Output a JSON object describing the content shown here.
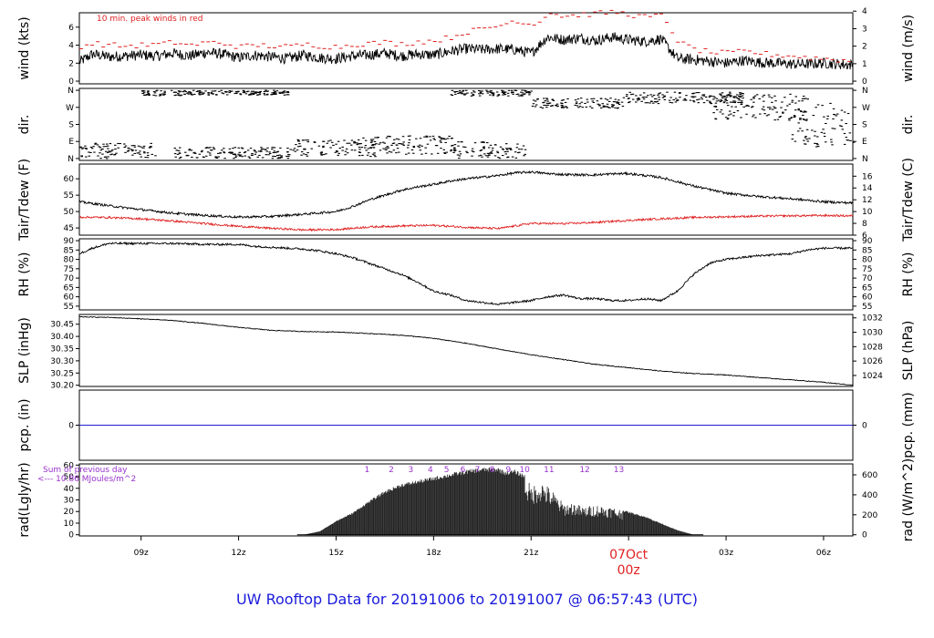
{
  "footer": {
    "title": "UW Rooftop Data for 20191006  to  20191007 @ 06:57:43  (UTC)"
  },
  "colors": {
    "peak_wind": "#e02020",
    "dewpoint": "#e02020",
    "precip": "#2020d0",
    "radiation_labels": "#9933cc",
    "date_marker": "#e02020",
    "footer": "#1a1adb"
  },
  "chart_data": [
    {
      "type": "line",
      "id": "wind",
      "ylabel_left": "wind (kts)",
      "ylabel_right": "wind (m/s)",
      "annotation": "10 min. peak winds in red",
      "yticks_left": [
        "0",
        "2",
        "4",
        "6"
      ],
      "ylim_left": [
        -0.3,
        7.6
      ],
      "yticks_right": [
        "0",
        "1",
        "2",
        "3",
        "4"
      ],
      "yticks_right_values_kts": [
        0,
        1.94,
        3.89,
        5.83,
        7.78
      ],
      "series": [
        {
          "name": "",
          "color": "#000000",
          "x": [
            7.1,
            7.5,
            8,
            8.5,
            9,
            9.5,
            10,
            10.5,
            11,
            11.5,
            12,
            12.5,
            13,
            13.5,
            14,
            14.5,
            15,
            15.5,
            16,
            16.5,
            17,
            17.5,
            18,
            18.5,
            19,
            19.5,
            20,
            20.5,
            21,
            21.5,
            22,
            22.5,
            23,
            23.5,
            24,
            24.5,
            25,
            25.5,
            26,
            26.5,
            27,
            27.5,
            28,
            28.5,
            29,
            29.5,
            30,
            30.9
          ],
          "values": [
            2.1,
            3.0,
            2.7,
            2.8,
            2.9,
            2.8,
            3.1,
            2.8,
            3.2,
            3.0,
            2.6,
            2.9,
            2.7,
            2.5,
            2.9,
            2.6,
            2.5,
            2.8,
            2.9,
            3.1,
            2.8,
            3.0,
            2.9,
            3.3,
            3.6,
            3.5,
            3.6,
            3.5,
            3.1,
            4.9,
            4.6,
            4.8,
            4.5,
            4.9,
            4.6,
            4.4,
            4.7,
            2.5,
            2.4,
            2.2,
            2.0,
            2.3,
            2.1,
            2.0,
            1.9,
            1.9,
            2.0,
            1.8
          ]
        },
        {
          "name": "",
          "color": "#e02020",
          "style": "dashes",
          "x": [
            7.1,
            7.5,
            8,
            8.5,
            9,
            9.5,
            10,
            10.5,
            11,
            11.5,
            12,
            12.5,
            13,
            13.5,
            14,
            14.5,
            15,
            15.5,
            16,
            16.5,
            17,
            17.5,
            18,
            18.5,
            19,
            19.5,
            20,
            20.5,
            21,
            21.5,
            22,
            22.5,
            23,
            23.5,
            24,
            24.5,
            25,
            25.5,
            26,
            26.5,
            27,
            27.5,
            28,
            28.5,
            29,
            29.5,
            30,
            30.9
          ],
          "values": [
            3.9,
            4.2,
            4.0,
            3.9,
            4.0,
            4.1,
            4.3,
            4.0,
            4.3,
            4.2,
            3.8,
            4.0,
            3.9,
            3.8,
            4.1,
            3.9,
            3.8,
            4.1,
            4.2,
            4.3,
            4.1,
            4.4,
            4.5,
            4.9,
            5.5,
            5.8,
            6.2,
            6.8,
            6.2,
            7.6,
            7.2,
            7.4,
            7.5,
            7.7,
            7.4,
            7.1,
            7.3,
            4.3,
            3.5,
            3.2,
            3.1,
            3.3,
            3.1,
            2.9,
            2.8,
            2.6,
            2.5,
            2.2
          ]
        }
      ]
    },
    {
      "type": "scatter",
      "id": "dir",
      "ylabel_left": "dir.",
      "ylabel_right": "dir.",
      "yticks": [
        "N",
        "E",
        "S",
        "W",
        "N"
      ],
      "ylim": [
        -10,
        370
      ],
      "note": "wind direction in degrees; 0/360 = N, 90 = E, 180 = S, 270 = W",
      "clusters": [
        {
          "x_range": [
            7.1,
            9.5
          ],
          "dir_range": [
            0,
            80
          ]
        },
        {
          "x_range": [
            9.0,
            10.5
          ],
          "dir_range": [
            330,
            360
          ]
        },
        {
          "x_range": [
            10.0,
            13.7
          ],
          "dir_range": [
            0,
            60
          ]
        },
        {
          "x_range": [
            10.5,
            13.5
          ],
          "dir_range": [
            335,
            360
          ]
        },
        {
          "x_range": [
            13.7,
            16.2
          ],
          "dir_range": [
            10,
            100
          ]
        },
        {
          "x_range": [
            15.8,
            18.6
          ],
          "dir_range": [
            20,
            120
          ]
        },
        {
          "x_range": [
            18.5,
            21.0
          ],
          "dir_range": [
            330,
            360
          ]
        },
        {
          "x_range": [
            18.6,
            20.8
          ],
          "dir_range": [
            0,
            90
          ]
        },
        {
          "x_range": [
            21.0,
            23.8
          ],
          "dir_range": [
            265,
            320
          ]
        },
        {
          "x_range": [
            23.8,
            27.5
          ],
          "dir_range": [
            290,
            350
          ]
        },
        {
          "x_range": [
            26.5,
            29.5
          ],
          "dir_range": [
            200,
            340
          ]
        },
        {
          "x_range": [
            29.0,
            30.9
          ],
          "dir_range": [
            60,
            310
          ]
        }
      ]
    },
    {
      "type": "line",
      "id": "temp",
      "ylabel_left": "Tair/Tdew (F)",
      "ylabel_right": "Tair/Tdew (C)",
      "yticks_left": [
        "45",
        "50",
        "55",
        "60"
      ],
      "ylim_left": [
        42.8,
        64.5
      ],
      "yticks_right": [
        "6",
        "8",
        "10",
        "12",
        "14",
        "16"
      ],
      "yticks_right_values_f": [
        42.8,
        46.4,
        50,
        53.6,
        57.2,
        60.8
      ],
      "series": [
        {
          "name": "",
          "color": "#000000",
          "x": [
            7.1,
            8,
            9,
            10,
            11,
            12,
            13,
            14,
            15,
            15.5,
            16,
            16.5,
            17,
            17.5,
            18,
            18.5,
            19,
            19.5,
            20,
            20.5,
            21,
            21.5,
            22,
            22.5,
            23,
            23.5,
            24,
            25,
            26,
            27,
            28,
            29,
            30,
            30.9
          ],
          "values": [
            53,
            51.8,
            50.6,
            49.5,
            48.8,
            48.3,
            48.5,
            49.2,
            50,
            51.5,
            53.5,
            55,
            56.5,
            57.5,
            58.3,
            59.3,
            60,
            60.5,
            61,
            61.8,
            62.1,
            61.6,
            61.3,
            61.2,
            61.2,
            61.5,
            61.6,
            60.4,
            57.8,
            55.6,
            54.6,
            53.9,
            53,
            52.6
          ]
        },
        {
          "name": "",
          "color": "#e02020",
          "x": [
            7.1,
            8,
            9,
            10,
            11,
            12,
            13,
            14,
            15,
            16,
            17,
            18,
            19,
            20,
            21,
            22,
            23,
            24,
            25,
            26,
            27,
            28,
            29,
            30,
            30.9
          ],
          "values": [
            48.3,
            48.2,
            47.8,
            47.1,
            46.3,
            45.5,
            44.9,
            44.4,
            44.5,
            45.3,
            45.6,
            45.8,
            45.2,
            44.8,
            46.4,
            46.3,
            46.7,
            47.3,
            47.8,
            48.2,
            48.4,
            48.6,
            48.7,
            48.8,
            48.7
          ]
        }
      ]
    },
    {
      "type": "line",
      "id": "rh",
      "ylabel_left": "RH (%)",
      "ylabel_right": "RH (%)",
      "yticks": [
        "55",
        "60",
        "65",
        "70",
        "75",
        "80",
        "85",
        "90"
      ],
      "ylim": [
        53,
        91
      ],
      "series": [
        {
          "name": "",
          "color": "#000000",
          "x": [
            7.1,
            7.5,
            8,
            9,
            10,
            11,
            12,
            12.5,
            13,
            13.5,
            14,
            14.5,
            15,
            15.5,
            16,
            16.5,
            17,
            17.5,
            18,
            18.5,
            19,
            19.5,
            20,
            20.5,
            21,
            21.5,
            22,
            22.5,
            23,
            23.5,
            24,
            24.5,
            25,
            25.5,
            26,
            26.5,
            27,
            28,
            29,
            29.5,
            30,
            30.9
          ],
          "values": [
            83,
            86,
            88.5,
            88.5,
            88.5,
            88,
            88,
            87,
            86.5,
            86,
            85.5,
            84.5,
            83,
            81,
            78,
            75,
            72,
            68,
            63,
            61,
            58,
            57,
            56,
            57,
            58,
            60,
            61,
            59,
            59,
            58,
            58,
            59,
            58,
            63,
            72,
            78,
            80,
            82,
            83,
            85,
            86,
            86
          ]
        }
      ]
    },
    {
      "type": "line",
      "id": "slp",
      "ylabel_left": "SLP (inHg)",
      "ylabel_right": "SLP (hPa)",
      "yticks_left": [
        "30.20",
        "30.25",
        "30.30",
        "30.35",
        "30.40",
        "30.45"
      ],
      "ylim_left": [
        30.195,
        30.49
      ],
      "yticks_right": [
        "1024",
        "1026",
        "1028",
        "1030",
        "1032"
      ],
      "yticks_right_values_inhg": [
        30.24,
        30.299,
        30.358,
        30.417,
        30.476
      ],
      "series": [
        {
          "name": "",
          "color": "#000000",
          "x": [
            7.1,
            8,
            9,
            10,
            11,
            12,
            13,
            14,
            15,
            16,
            17,
            18,
            19,
            20,
            21,
            22,
            23,
            24,
            25,
            26,
            27,
            28,
            29,
            30,
            30.9
          ],
          "values": [
            30.48,
            30.478,
            30.472,
            30.465,
            30.452,
            30.437,
            30.425,
            30.42,
            30.418,
            30.412,
            30.405,
            30.392,
            30.372,
            30.348,
            30.325,
            30.305,
            30.285,
            30.272,
            30.258,
            30.248,
            30.242,
            30.232,
            30.222,
            30.212,
            30.2
          ]
        }
      ]
    },
    {
      "type": "line",
      "id": "pcp",
      "ylabel_left": "pcp. (in)",
      "ylabel_right": "pcp. (mm)",
      "yticks_left": [
        "0"
      ],
      "yticks_right": [
        "0"
      ],
      "ylim": [
        -1,
        1
      ],
      "series": [
        {
          "name": "",
          "color": "#2020d0",
          "x": [
            7.1,
            30.9
          ],
          "values": [
            0,
            0
          ]
        }
      ]
    },
    {
      "type": "area",
      "id": "rad",
      "ylabel_left": "rad(Lgly/hr)",
      "ylabel_right": "rad (W/m^2)",
      "yticks_left": [
        "0",
        "10",
        "20",
        "30",
        "40",
        "50",
        "60"
      ],
      "ylim_left": [
        -1,
        61
      ],
      "yticks_right": [
        "0",
        "200",
        "400",
        "600"
      ],
      "yticks_right_values_lgly": [
        0,
        17.2,
        34.4,
        51.6
      ],
      "sum_label_1": "Sum of previous day",
      "sum_label_2": "<--- 10.86 MJoules/m^2",
      "hour_labels": [
        "1",
        "2",
        "3",
        "4",
        "5",
        "6",
        "7",
        "8",
        "9",
        "10",
        "11",
        "12",
        "13"
      ],
      "hour_label_x": [
        15.95,
        16.7,
        17.3,
        17.9,
        18.4,
        18.9,
        19.35,
        19.8,
        20.3,
        20.8,
        21.55,
        22.65,
        23.7
      ],
      "series": [
        {
          "name": "",
          "color": "#222222",
          "x": [
            14,
            14.5,
            15,
            15.5,
            16,
            16.5,
            17,
            17.5,
            18,
            18.5,
            19,
            19.5,
            20,
            20.2,
            20.5,
            20.8,
            21,
            21.3,
            21.6,
            22,
            22.3,
            22.6,
            23,
            23.5,
            24,
            24.5,
            25,
            25.5,
            26
          ],
          "values": [
            0,
            3,
            12,
            19,
            29,
            38,
            44,
            47,
            50,
            53,
            56,
            58,
            58,
            55,
            56,
            52,
            42,
            47,
            40,
            27,
            28,
            24,
            26,
            24,
            20,
            16,
            10,
            4,
            0
          ]
        }
      ]
    }
  ],
  "x_axis": {
    "ticks": [
      "09z",
      "12z",
      "15z",
      "18z",
      "21z",
      "00z",
      "03z",
      "06z"
    ],
    "tick_hours": [
      9,
      12,
      15,
      18,
      21,
      24,
      27,
      30
    ],
    "date_label": "07Oct",
    "date_label_hour": 24,
    "xlim": [
      7.1,
      30.9
    ]
  }
}
